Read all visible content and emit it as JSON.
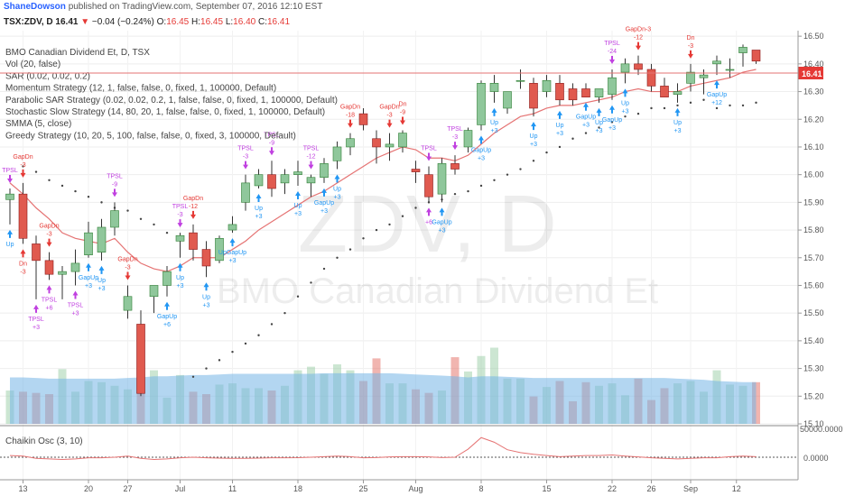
{
  "header": {
    "author": "ShaneDowson",
    "published": "published on TradingView.com, September 07, 2016 12:10 EST",
    "symbol": "TSX:ZDV, D",
    "last": "16.41",
    "change_arrow": "▼",
    "change": "−0.04 (−0.24%)",
    "o_label": "O:",
    "o_val": "16.45",
    "h_label": "H:",
    "h_val": "16.45",
    "l_label": "L:",
    "l_val": "16.40",
    "c_label": "C:",
    "c_val": "16.41"
  },
  "legend": [
    "BMO Canadian Dividend Et, D, TSX",
    "Vol (20, false)",
    "SAR (0.02, 0.02, 0.2)",
    "Momentum Strategy (12, 1, false, false, 0, fixed, 1, 100000, Default)",
    "Parabolic SAR Strategy (0.02, 0.02, 0.2, 1, false, false, 0, fixed, 1, 100000, Default)",
    "Stochastic Slow Strategy (14, 80, 20, 1, false, false, 0, fixed, 1, 100000, Default)",
    "SMMA (5, close)",
    "Greedy Strategy (10, 20, 5, 100, false, false, 0, fixed, 3, 100000, Default)"
  ],
  "watermark": {
    "symbol": "ZDV, D",
    "name": "BMO Canadian Dividend Et"
  },
  "oscillator": {
    "label": "Chaikin Osc (3, 10)",
    "top_tick": "50000.0000",
    "zero_tick": "0.0000"
  },
  "price_tag": "16.41",
  "colors": {
    "up": "#8fc79b",
    "up_border": "#2e7d32",
    "down": "#e05a4f",
    "down_border": "#8b1a1a",
    "smma": "#e57373",
    "sar": "#444444",
    "volume_ma": "#74b4e6",
    "marker_blue": "#2196f3",
    "marker_red": "#e53935",
    "marker_purple": "#c040e0"
  },
  "chart_data": {
    "type": "candlestick",
    "y_ticks": [
      "16.50",
      "16.40",
      "16.30",
      "16.20",
      "16.10",
      "16.00",
      "15.90",
      "15.80",
      "15.70",
      "15.60",
      "15.50",
      "15.40",
      "15.30",
      "15.20",
      "15.10"
    ],
    "ylim": [
      15.1,
      16.52
    ],
    "x_ticks": [
      {
        "label": "13",
        "bar": 1
      },
      {
        "label": "20",
        "bar": 6
      },
      {
        "label": "27",
        "bar": 9
      },
      {
        "label": "Jul",
        "bar": 13
      },
      {
        "label": "11",
        "bar": 17
      },
      {
        "label": "18",
        "bar": 22
      },
      {
        "label": "25",
        "bar": 27
      },
      {
        "label": "Aug",
        "bar": 31
      },
      {
        "label": "8",
        "bar": 36
      },
      {
        "label": "15",
        "bar": 41
      },
      {
        "label": "22",
        "bar": 46
      },
      {
        "label": "26",
        "bar": 49
      },
      {
        "label": "Sep",
        "bar": 52
      },
      {
        "label": "12",
        "bar": 55.5
      }
    ],
    "candles": [
      {
        "o": 15.91,
        "h": 15.95,
        "l": 15.82,
        "c": 15.93
      },
      {
        "o": 15.93,
        "h": 15.97,
        "l": 15.75,
        "c": 15.77
      },
      {
        "o": 15.75,
        "h": 15.78,
        "l": 15.55,
        "c": 15.69
      },
      {
        "o": 15.69,
        "h": 15.72,
        "l": 15.62,
        "c": 15.64
      },
      {
        "o": 15.64,
        "h": 15.67,
        "l": 15.55,
        "c": 15.65
      },
      {
        "o": 15.65,
        "h": 15.73,
        "l": 15.6,
        "c": 15.68
      },
      {
        "o": 15.71,
        "h": 15.83,
        "l": 15.7,
        "c": 15.79
      },
      {
        "o": 15.72,
        "h": 15.84,
        "l": 15.69,
        "c": 15.81
      },
      {
        "o": 15.81,
        "h": 15.9,
        "l": 15.78,
        "c": 15.87
      },
      {
        "o": 15.51,
        "h": 15.6,
        "l": 15.48,
        "c": 15.56
      },
      {
        "o": 15.46,
        "h": 15.51,
        "l": 15.2,
        "c": 15.21
      },
      {
        "o": 15.56,
        "h": 15.6,
        "l": 15.5,
        "c": 15.6
      },
      {
        "o": 15.6,
        "h": 15.67,
        "l": 15.56,
        "c": 15.65
      },
      {
        "o": 15.76,
        "h": 15.79,
        "l": 15.7,
        "c": 15.78
      },
      {
        "o": 15.79,
        "h": 15.82,
        "l": 15.69,
        "c": 15.73
      },
      {
        "o": 15.73,
        "h": 15.76,
        "l": 15.63,
        "c": 15.67
      },
      {
        "o": 15.69,
        "h": 15.78,
        "l": 15.68,
        "c": 15.77
      },
      {
        "o": 15.8,
        "h": 15.85,
        "l": 15.79,
        "c": 15.82
      },
      {
        "o": 15.9,
        "h": 16.0,
        "l": 15.87,
        "c": 15.97
      },
      {
        "o": 15.96,
        "h": 16.02,
        "l": 15.95,
        "c": 16.0
      },
      {
        "o": 16.0,
        "h": 16.05,
        "l": 15.92,
        "c": 15.95
      },
      {
        "o": 15.97,
        "h": 16.02,
        "l": 15.93,
        "c": 16.0
      },
      {
        "o": 16.0,
        "h": 16.05,
        "l": 15.96,
        "c": 16.01
      },
      {
        "o": 15.97,
        "h": 16.0,
        "l": 15.92,
        "c": 15.99
      },
      {
        "o": 15.99,
        "h": 16.06,
        "l": 15.97,
        "c": 16.04
      },
      {
        "o": 16.05,
        "h": 16.12,
        "l": 16.02,
        "c": 16.1
      },
      {
        "o": 16.1,
        "h": 16.15,
        "l": 16.07,
        "c": 16.13
      },
      {
        "o": 16.22,
        "h": 16.24,
        "l": 16.16,
        "c": 16.18
      },
      {
        "o": 16.13,
        "h": 16.16,
        "l": 16.04,
        "c": 16.1
      },
      {
        "o": 16.1,
        "h": 16.15,
        "l": 16.05,
        "c": 16.11
      },
      {
        "o": 16.1,
        "h": 16.16,
        "l": 16.08,
        "c": 16.15
      },
      {
        "o": 16.02,
        "h": 16.05,
        "l": 15.97,
        "c": 16.01
      },
      {
        "o": 16.0,
        "h": 16.03,
        "l": 15.9,
        "c": 15.92
      },
      {
        "o": 15.93,
        "h": 16.06,
        "l": 15.9,
        "c": 16.04
      },
      {
        "o": 16.04,
        "h": 16.07,
        "l": 16.0,
        "c": 16.02
      },
      {
        "o": 16.1,
        "h": 16.17,
        "l": 16.08,
        "c": 16.16
      },
      {
        "o": 16.18,
        "h": 16.34,
        "l": 16.16,
        "c": 16.33
      },
      {
        "o": 16.3,
        "h": 16.36,
        "l": 16.26,
        "c": 16.33
      },
      {
        "o": 16.24,
        "h": 16.3,
        "l": 16.22,
        "c": 16.3
      },
      {
        "o": 16.34,
        "h": 16.38,
        "l": 16.31,
        "c": 16.34
      },
      {
        "o": 16.33,
        "h": 16.35,
        "l": 16.21,
        "c": 16.24
      },
      {
        "o": 16.3,
        "h": 16.36,
        "l": 16.28,
        "c": 16.34
      },
      {
        "o": 16.33,
        "h": 16.36,
        "l": 16.25,
        "c": 16.27
      },
      {
        "o": 16.31,
        "h": 16.33,
        "l": 16.25,
        "c": 16.27
      },
      {
        "o": 16.31,
        "h": 16.33,
        "l": 16.28,
        "c": 16.28
      },
      {
        "o": 16.28,
        "h": 16.31,
        "l": 16.26,
        "c": 16.31
      },
      {
        "o": 16.29,
        "h": 16.38,
        "l": 16.27,
        "c": 16.35
      },
      {
        "o": 16.37,
        "h": 16.42,
        "l": 16.33,
        "c": 16.4
      },
      {
        "o": 16.4,
        "h": 16.43,
        "l": 16.36,
        "c": 16.38
      },
      {
        "o": 16.38,
        "h": 16.4,
        "l": 16.3,
        "c": 16.32
      },
      {
        "o": 16.32,
        "h": 16.35,
        "l": 16.28,
        "c": 16.28
      },
      {
        "o": 16.29,
        "h": 16.33,
        "l": 16.26,
        "c": 16.3
      },
      {
        "o": 16.33,
        "h": 16.4,
        "l": 16.3,
        "c": 16.37
      },
      {
        "o": 16.35,
        "h": 16.38,
        "l": 16.29,
        "c": 16.36
      },
      {
        "o": 16.4,
        "h": 16.43,
        "l": 16.36,
        "c": 16.41
      },
      {
        "o": 16.38,
        "h": 16.42,
        "l": 16.35,
        "c": 16.38
      },
      {
        "o": 16.44,
        "h": 16.47,
        "l": 16.39,
        "c": 16.46
      },
      {
        "o": 16.45,
        "h": 16.45,
        "l": 16.4,
        "c": 16.41
      }
    ],
    "volume": [
      28,
      27,
      26,
      25,
      46,
      27,
      36,
      35,
      32,
      29,
      66,
      45,
      22,
      41,
      27,
      25,
      33,
      34,
      30,
      30,
      28,
      32,
      45,
      48,
      42,
      50,
      45,
      36,
      55,
      34,
      34,
      29,
      26,
      28,
      56,
      44,
      57,
      64,
      38,
      38,
      23,
      31,
      36,
      19,
      35,
      32,
      34,
      24,
      38,
      20,
      30,
      34,
      36,
      27,
      45,
      33,
      32,
      35
    ],
    "volume_ma": [
      39,
      39,
      38.5,
      38,
      38,
      38,
      38,
      38,
      38,
      38.5,
      39,
      40,
      40,
      40.5,
      41,
      41,
      41.5,
      42,
      42,
      42,
      42,
      42,
      42,
      42,
      42.5,
      42.5,
      42.5,
      42.5,
      42.5,
      42.5,
      42,
      41.5,
      41,
      40.5,
      40,
      39,
      40,
      40,
      39.5,
      39,
      38.5,
      38.5,
      38.5,
      38.5,
      38.5,
      38.5,
      38.5,
      38.5,
      38.5,
      38.5,
      38.5,
      38,
      37.5,
      37,
      36,
      35.5,
      35,
      35
    ],
    "smma": [
      15.97,
      15.93,
      15.88,
      15.84,
      15.79,
      15.77,
      15.76,
      15.75,
      15.77,
      15.72,
      15.68,
      15.66,
      15.65,
      15.67,
      15.7,
      15.7,
      15.7,
      15.73,
      15.76,
      15.8,
      15.83,
      15.86,
      15.89,
      15.92,
      15.94,
      15.97,
      16.0,
      16.03,
      16.06,
      16.08,
      16.1,
      16.09,
      16.06,
      16.06,
      16.05,
      16.07,
      16.11,
      16.15,
      16.18,
      16.21,
      16.22,
      16.24,
      16.25,
      16.25,
      16.26,
      16.27,
      16.28,
      16.3,
      16.31,
      16.3,
      16.3,
      16.3,
      16.32,
      16.33,
      16.34,
      16.35,
      16.37,
      16.38
    ],
    "sar": [
      null,
      16.03,
      16.01,
      15.98,
      15.96,
      15.94,
      15.92,
      15.9,
      15.88,
      15.87,
      15.84,
      15.82,
      15.79,
      15.77,
      15.27,
      15.3,
      15.33,
      15.36,
      15.39,
      15.42,
      15.46,
      15.5,
      15.56,
      15.61,
      15.66,
      15.7,
      15.73,
      15.77,
      15.8,
      15.82,
      15.85,
      15.88,
      15.9,
      15.91,
      15.93,
      15.94,
      15.96,
      15.98,
      16.0,
      16.02,
      16.05,
      16.08,
      16.1,
      16.13,
      16.15,
      16.17,
      16.19,
      16.21,
      16.22,
      16.24,
      16.24,
      16.25,
      16.26,
      16.27,
      16.24,
      16.25,
      16.25,
      16.26
    ],
    "oscillator": [
      3000,
      2000,
      -2000,
      -3000,
      -4000,
      -3000,
      -1000,
      -1000,
      0,
      2000,
      -2000,
      -4000,
      -3000,
      -1000,
      0,
      -1000,
      -1500,
      -2000,
      -2000,
      -1500,
      -1000,
      -1000,
      -800,
      0,
      1000,
      2000,
      1000,
      -1000,
      -500,
      500,
      1000,
      1000,
      500,
      -500,
      0,
      14000,
      34000,
      26000,
      13000,
      8000,
      5000,
      3000,
      1000,
      2000,
      3000,
      3000,
      4000,
      2000,
      500,
      -1000,
      -2000,
      -3000,
      -2000,
      -1000,
      -1000,
      1000,
      2000,
      1000
    ],
    "markers": [
      {
        "bar": 0,
        "side": "up",
        "color": "blue",
        "text": "Up"
      },
      {
        "bar": 0,
        "side": "down",
        "color": "purple",
        "text": "TPSL"
      },
      {
        "bar": 1,
        "side": "down",
        "color": "red",
        "text": "GapDn -3"
      },
      {
        "bar": 1,
        "side": "up",
        "color": "red",
        "text": "Dn -3"
      },
      {
        "bar": 2,
        "side": "up",
        "color": "purple",
        "text": "TPSL +3"
      },
      {
        "bar": 3,
        "side": "down",
        "color": "red",
        "text": "GapDn -3"
      },
      {
        "bar": 3,
        "side": "up",
        "color": "purple",
        "text": "TPSL +6"
      },
      {
        "bar": 5,
        "side": "up",
        "color": "purple",
        "text": "TPSL +3"
      },
      {
        "bar": 6,
        "side": "up",
        "color": "blue",
        "text": "GapUp +3"
      },
      {
        "bar": 7,
        "side": "up",
        "color": "blue",
        "text": "Up +3"
      },
      {
        "bar": 8,
        "side": "down",
        "color": "purple",
        "text": "TPSL -9"
      },
      {
        "bar": 9,
        "side": "down",
        "color": "red",
        "text": "GapDn -3"
      },
      {
        "bar": 12,
        "side": "up",
        "color": "blue",
        "text": "GapUp +6"
      },
      {
        "bar": 13,
        "side": "down",
        "color": "purple",
        "text": "TPSL -3"
      },
      {
        "bar": 13,
        "side": "up",
        "color": "blue",
        "text": "Up +3"
      },
      {
        "bar": 14,
        "side": "down",
        "color": "red",
        "text": "GapDn -12"
      },
      {
        "bar": 15,
        "side": "up",
        "color": "blue",
        "text": "Up +3"
      },
      {
        "bar": 17,
        "side": "up",
        "color": "blue",
        "text": "UpGapUp +3"
      },
      {
        "bar": 18,
        "side": "down",
        "color": "purple",
        "text": "TPSL -3"
      },
      {
        "bar": 19,
        "side": "up",
        "color": "blue",
        "text": "Up +3"
      },
      {
        "bar": 20,
        "side": "down",
        "color": "purple",
        "text": "TPSL -9"
      },
      {
        "bar": 22,
        "side": "up",
        "color": "blue",
        "text": "Up +3"
      },
      {
        "bar": 23,
        "side": "down",
        "color": "purple",
        "text": "TPSL -12"
      },
      {
        "bar": 24,
        "side": "up",
        "color": "blue",
        "text": "GapUp +3"
      },
      {
        "bar": 25,
        "side": "up",
        "color": "blue",
        "text": "Up +3"
      },
      {
        "bar": 26,
        "side": "down",
        "color": "red",
        "text": "GapDn -18"
      },
      {
        "bar": 29,
        "side": "down",
        "color": "red",
        "text": "GapDn -3"
      },
      {
        "bar": 30,
        "side": "down",
        "color": "red",
        "text": "Dn -9"
      },
      {
        "bar": 32,
        "side": "down",
        "color": "purple",
        "text": "TPSL"
      },
      {
        "bar": 32,
        "side": "up",
        "color": "purple",
        "text": "+6"
      },
      {
        "bar": 33,
        "side": "up",
        "color": "blue",
        "text": "GapUp +3"
      },
      {
        "bar": 34,
        "side": "down",
        "color": "purple",
        "text": "TPSL -3"
      },
      {
        "bar": 36,
        "side": "up",
        "color": "blue",
        "text": "GapUp +3"
      },
      {
        "bar": 37,
        "side": "up",
        "color": "blue",
        "text": "Up +3"
      },
      {
        "bar": 40,
        "side": "up",
        "color": "blue",
        "text": "Up +3"
      },
      {
        "bar": 42,
        "side": "up",
        "color": "blue",
        "text": "Up +3"
      },
      {
        "bar": 44,
        "side": "up",
        "color": "blue",
        "text": "GapUp +3"
      },
      {
        "bar": 45,
        "side": "up",
        "color": "blue",
        "text": "Up +3"
      },
      {
        "bar": 46,
        "side": "down",
        "color": "purple",
        "text": "TPSL -24"
      },
      {
        "bar": 46,
        "side": "up",
        "color": "blue",
        "text": "GapUp +3"
      },
      {
        "bar": 47,
        "side": "up",
        "color": "blue",
        "text": "Up +3"
      },
      {
        "bar": 48,
        "side": "down",
        "color": "red",
        "text": "GapDn-3 -12"
      },
      {
        "bar": 51,
        "side": "up",
        "color": "blue",
        "text": "Up +3"
      },
      {
        "bar": 52,
        "side": "down",
        "color": "red",
        "text": "Dn -3"
      },
      {
        "bar": 54,
        "side": "up",
        "color": "blue",
        "text": "GapUp +12"
      }
    ]
  }
}
